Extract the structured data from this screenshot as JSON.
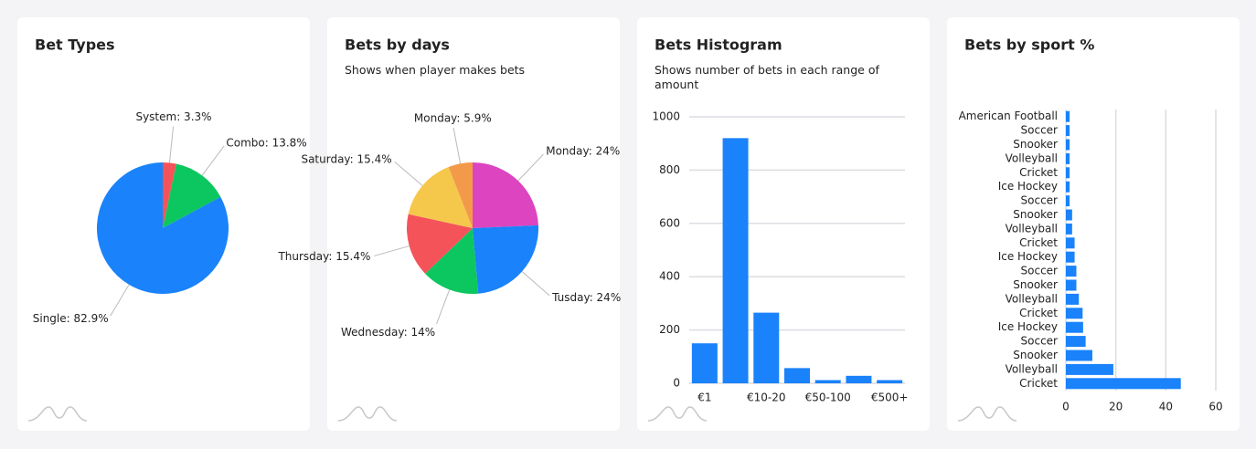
{
  "chart_data": [
    {
      "type": "pie",
      "title": "Bet Types",
      "values": [
        3.3,
        13.8,
        82.9
      ],
      "value_labels": [
        "System: 3.3%",
        "Combo: 13.8%",
        "Single: 82.9%"
      ],
      "colors": [
        "#f5535a",
        "#0cc760",
        "#1a82fb"
      ]
    },
    {
      "type": "pie",
      "title": "Bets by days",
      "subtitle": "Shows when player makes bets",
      "values": [
        24,
        24,
        14,
        15.4,
        15.4,
        5.9
      ],
      "value_labels": [
        "Monday: 24%",
        "Tusday: 24%",
        "Wednesday: 14%",
        "Thursday: 15.4%",
        "Saturday: 15.4%",
        "Monday: 5.9%"
      ],
      "colors": [
        "#dc44c0",
        "#1a82fb",
        "#0cc760",
        "#f5535a",
        "#f5c84c",
        "#f39a4a"
      ]
    },
    {
      "type": "bar",
      "title": "Bets Histogram",
      "subtitle": "Shows number of bets in each range of amount",
      "categories": [
        "€1",
        null,
        "€10-20",
        null,
        "€50-100",
        null,
        "€500+"
      ],
      "values": [
        150,
        920,
        265,
        57,
        12,
        28,
        12
      ],
      "color": "#1a82fb",
      "ylim": [
        0,
        1000
      ],
      "yticks": [
        0,
        200,
        400,
        600,
        800,
        1000
      ],
      "grid": true
    },
    {
      "type": "hbar",
      "title": "Bets by sport %",
      "categories": [
        "American Football",
        "Soccer",
        "Snooker",
        "Volleyball",
        "Cricket",
        "Ice Hockey",
        "Soccer",
        "Snooker",
        "Volleyball",
        "Cricket",
        "Ice Hockey",
        "Soccer",
        "Snooker",
        "Volleyball",
        "Cricket",
        "Ice Hockey",
        "Soccer",
        "Snooker",
        "Volleyball",
        "Cricket"
      ],
      "values": [
        1.5,
        1.5,
        1.5,
        1.5,
        1.5,
        1.5,
        1.5,
        2.5,
        2.5,
        3.5,
        3.5,
        4.2,
        4.2,
        5.2,
        6.7,
        6.9,
        7.9,
        10.6,
        19,
        46
      ],
      "color": "#1a82fb",
      "xlim": [
        0,
        60
      ],
      "xticks": [
        0,
        20,
        40,
        60
      ],
      "grid": true
    }
  ]
}
